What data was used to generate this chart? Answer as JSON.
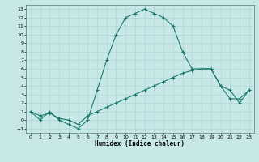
{
  "xlabel": "Humidex (Indice chaleur)",
  "background_color": "#c8e8e8",
  "grid_color": "#b0d8d8",
  "line_color": "#1a7a6a",
  "x_line1": [
    0,
    1,
    2,
    3,
    4,
    5,
    6,
    7,
    8,
    9,
    10,
    11,
    12,
    13,
    14,
    15,
    16,
    17,
    18,
    19,
    20,
    21,
    22,
    23
  ],
  "y_line1": [
    1,
    0,
    1,
    0,
    -0.5,
    -1,
    0,
    3.5,
    7,
    10,
    12,
    12.5,
    13,
    12.5,
    12,
    11,
    8,
    6,
    6,
    6,
    4,
    3.5,
    2,
    3.5
  ],
  "x_line2": [
    0,
    1,
    2,
    3,
    4,
    5,
    6,
    7,
    8,
    9,
    10,
    11,
    12,
    13,
    14,
    15,
    16,
    17,
    18,
    19,
    20,
    21,
    22,
    23
  ],
  "y_line2": [
    1,
    0.5,
    0.8,
    0.2,
    0.0,
    -0.5,
    0.5,
    1.0,
    1.5,
    2.0,
    2.5,
    3.0,
    3.5,
    4.0,
    4.5,
    5.0,
    5.5,
    5.8,
    6.0,
    6.0,
    4.0,
    2.5,
    2.5,
    3.5
  ],
  "ylim": [
    -1.5,
    13.5
  ],
  "xlim": [
    -0.5,
    23.5
  ],
  "yticks": [
    -1,
    0,
    1,
    2,
    3,
    4,
    5,
    6,
    7,
    8,
    9,
    10,
    11,
    12,
    13
  ],
  "xticks": [
    0,
    1,
    2,
    3,
    4,
    5,
    6,
    7,
    8,
    9,
    10,
    11,
    12,
    13,
    14,
    15,
    16,
    17,
    18,
    19,
    20,
    21,
    22,
    23
  ]
}
